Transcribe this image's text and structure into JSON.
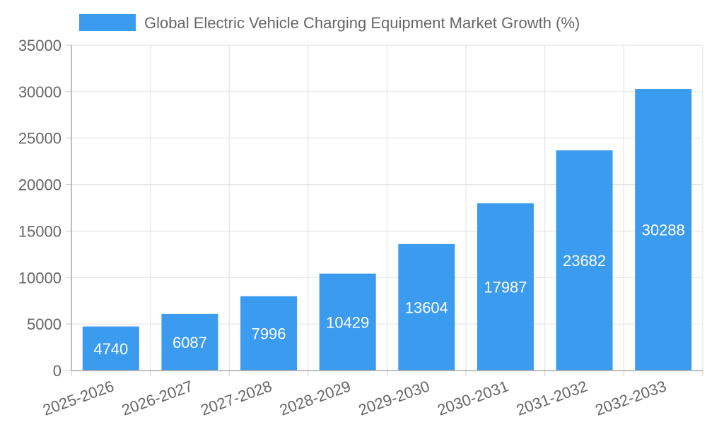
{
  "chart_data": {
    "type": "bar",
    "title": "",
    "xlabel": "",
    "ylabel": "",
    "categories": [
      "2025-2026",
      "2026-2027",
      "2027-2028",
      "2028-2029",
      "2029-2030",
      "2030-2031",
      "2031-2032",
      "2032-2033"
    ],
    "series": [
      {
        "name": "Global Electric Vehicle Charging Equipment Market Growth (%)",
        "values": [
          4740,
          6087,
          7996,
          10429,
          13604,
          17987,
          23682,
          30288
        ],
        "color": "#3a9bef"
      }
    ],
    "ylim": [
      0,
      35000
    ],
    "yticks": [
      0,
      5000,
      10000,
      15000,
      20000,
      25000,
      30000,
      35000
    ],
    "grid": true,
    "legend": "top-center",
    "data_labels": true
  }
}
